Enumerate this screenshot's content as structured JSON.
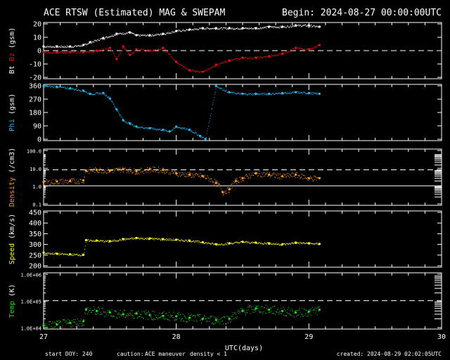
{
  "header": {
    "title": "ACE RTSW (Estimated) MAG & SWEPAM",
    "begin": "Begin: 2024-08-27 00:00:00UTC"
  },
  "footer": {
    "start_doy": "start DOY: 240",
    "caution": "caution:",
    "maneuver": "ACE maneuver",
    "density_note": "density < 1",
    "created": "created: 2024-08-29 02:02:05UTC"
  },
  "colors": {
    "bt": "#ffffff",
    "bz": "#e01010",
    "phi": "#22b8f0",
    "density": "#ff9922",
    "speed": "#ffff22",
    "temp": "#22dd22",
    "maneuver": "#ffd000",
    "note": "#ff9922"
  },
  "chart_data": [
    {
      "type": "line",
      "ylabel": [
        "Bt",
        "Bz",
        "(gsm)"
      ],
      "ylim": [
        -20,
        20
      ],
      "yticks": [
        "20",
        "10",
        "0",
        "-10",
        "-20"
      ],
      "xlim": [
        27,
        30
      ],
      "series": [
        {
          "name": "Bt",
          "x": [
            27.0,
            27.1,
            27.2,
            27.3,
            27.35,
            27.45,
            27.55,
            27.65,
            27.7,
            27.8,
            27.9,
            28.0,
            28.1,
            28.2,
            28.3,
            28.4,
            28.5,
            28.6,
            28.7,
            28.8,
            28.9,
            29.0,
            29.08
          ],
          "y": [
            3,
            3,
            3,
            4,
            6,
            9,
            12,
            13,
            11,
            11,
            12,
            14,
            15,
            16,
            16,
            16,
            16,
            16,
            17,
            17,
            18,
            18,
            17
          ]
        },
        {
          "name": "Bz",
          "x": [
            27.0,
            27.1,
            27.2,
            27.3,
            27.4,
            27.5,
            27.55,
            27.6,
            27.65,
            27.7,
            27.8,
            27.9,
            28.0,
            28.1,
            28.2,
            28.3,
            28.4,
            28.5,
            28.6,
            28.7,
            28.8,
            28.9,
            29.0,
            29.08
          ],
          "y": [
            -1,
            -1,
            -1,
            -1,
            0,
            2,
            -6,
            3,
            -3,
            1,
            0,
            2,
            -8,
            -14,
            -15,
            -10,
            -7,
            -5,
            -5,
            -4,
            -2,
            2,
            1,
            4
          ]
        }
      ]
    },
    {
      "type": "scatter",
      "ylabel": [
        "Phi",
        "(gsm)"
      ],
      "ylim": [
        0,
        360
      ],
      "yticks": [
        "360",
        "270",
        "180",
        "90",
        "0"
      ],
      "xlim": [
        27,
        30
      ],
      "series": [
        {
          "name": "Phi",
          "x": [
            27.0,
            27.1,
            27.2,
            27.3,
            27.35,
            27.45,
            27.5,
            27.55,
            27.6,
            27.65,
            27.7,
            27.8,
            27.9,
            27.95,
            28.0,
            28.1,
            28.18,
            28.22,
            28.3,
            28.4,
            28.5,
            28.6,
            28.7,
            28.8,
            28.9,
            29.0,
            29.08
          ],
          "y": [
            350,
            345,
            335,
            320,
            300,
            305,
            270,
            200,
            130,
            110,
            90,
            80,
            70,
            60,
            90,
            70,
            30,
            10,
            350,
            310,
            300,
            300,
            300,
            305,
            310,
            305,
            300
          ]
        }
      ]
    },
    {
      "type": "scatter",
      "ylabel": [
        "Density",
        "(/cm3)"
      ],
      "ylim": [
        0.06,
        200
      ],
      "log": true,
      "yticks": [
        "100.0",
        "10.0",
        "1.0",
        "0.1"
      ],
      "xlim": [
        27,
        30
      ],
      "series": [
        {
          "name": "Density",
          "x": [
            27.0,
            27.1,
            27.2,
            27.3,
            27.32,
            27.4,
            27.5,
            27.6,
            27.7,
            27.8,
            27.9,
            28.0,
            28.1,
            28.2,
            28.3,
            28.35,
            28.4,
            28.45,
            28.5,
            28.6,
            28.7,
            28.8,
            28.9,
            29.0,
            29.08
          ],
          "y": [
            1.7,
            1.9,
            2.0,
            2.2,
            9,
            10,
            9,
            11,
            8,
            11,
            10,
            6,
            5,
            4,
            1.5,
            0.4,
            0.6,
            2,
            3,
            6,
            5,
            4,
            5,
            3,
            3
          ]
        }
      ]
    },
    {
      "type": "scatter",
      "ylabel": [
        "Speed",
        "(km/s)"
      ],
      "ylim": [
        190,
        460
      ],
      "yticks": [
        "450",
        "400",
        "350",
        "300",
        "250",
        "200"
      ],
      "xlim": [
        27,
        30
      ],
      "series": [
        {
          "name": "Speed",
          "x": [
            27.0,
            27.1,
            27.2,
            27.3,
            27.32,
            27.4,
            27.5,
            27.6,
            27.7,
            27.8,
            27.9,
            28.0,
            28.1,
            28.2,
            28.3,
            28.4,
            28.5,
            28.6,
            28.7,
            28.8,
            28.9,
            29.0,
            29.08
          ],
          "y": [
            260,
            255,
            252,
            250,
            320,
            318,
            315,
            325,
            330,
            328,
            325,
            322,
            318,
            310,
            300,
            305,
            312,
            308,
            305,
            300,
            308,
            305,
            302
          ]
        }
      ]
    },
    {
      "type": "scatter",
      "ylabel": [
        "Temp",
        "(K)"
      ],
      "ylim": [
        8000,
        1200000
      ],
      "log": true,
      "yticks": [
        "1.0E+06",
        "1.0E+05",
        "1.0E+04"
      ],
      "xlim": [
        27,
        30
      ],
      "xticks": [
        "27",
        "28",
        "29",
        "30"
      ],
      "xlabel": "UTC(days)",
      "series": [
        {
          "name": "Temp",
          "x": [
            27.0,
            27.1,
            27.2,
            27.3,
            27.32,
            27.4,
            27.5,
            27.6,
            27.7,
            27.8,
            27.9,
            28.0,
            28.1,
            28.2,
            28.3,
            28.4,
            28.5,
            28.6,
            28.7,
            28.8,
            28.9,
            29.0,
            29.08
          ],
          "y": [
            11000,
            12000,
            14000,
            16000,
            45000,
            40000,
            35000,
            30000,
            32000,
            28000,
            26000,
            25000,
            22000,
            20000,
            18000,
            20000,
            40000,
            50000,
            45000,
            40000,
            35000,
            38000,
            45000
          ]
        }
      ]
    }
  ]
}
